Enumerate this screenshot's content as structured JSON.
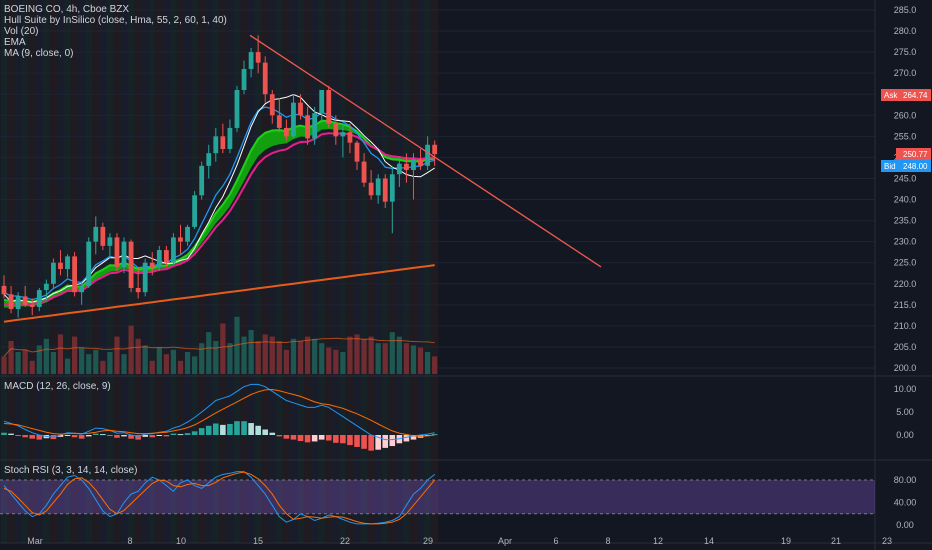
{
  "legend": {
    "symbol": "BOEING CO, 4h, Cboe BZX",
    "hull": "Hull Suite by InSilico (close, Hma, 55, 2, 60, 1, 40)",
    "vol": "Vol (20)",
    "ema": "EMA",
    "ma": "MA (9, close, 0)",
    "macd": "MACD (12, 26, close, 9)",
    "stoch": "Stoch RSI (3, 3, 14, 14, close)"
  },
  "price_labels": {
    "ask_label": "Ask",
    "ask_value": "264.74",
    "last_value": "250.77",
    "bid_label": "Bid",
    "bid_value": "248.00"
  },
  "colors": {
    "up": "#26a69a",
    "down": "#ef5350",
    "hull": "#13a80f",
    "ema_slow": "#e65c1b",
    "ema_fast": "#e91e8c",
    "ma": "#ffffff",
    "trendline": "#f05a50",
    "bb_blue": "#2196f3",
    "macd_line": "#2196f3",
    "signal_line": "#ff6d00",
    "stoch_k": "#2196f3",
    "stoch_d": "#ff6d00",
    "stoch_band": "#7e57c2"
  },
  "chart_data": [
    {
      "type": "candlestick",
      "name": "BOEING CO, 4h, Cboe BZX",
      "x_ticks": [
        "Mar",
        "8",
        "10",
        "15",
        "22",
        "29",
        "Apr",
        "6",
        "8",
        "12",
        "14",
        "19",
        "21",
        "23"
      ],
      "y_ticks": [
        285,
        280,
        275,
        270,
        265,
        260,
        255,
        250,
        245,
        240,
        235,
        230,
        225,
        220,
        215,
        210,
        205,
        200
      ],
      "ylim": [
        198,
        286
      ],
      "candles": [
        [
          219.5,
          222,
          216.5,
          217.5
        ],
        [
          217.5,
          219.5,
          213,
          214
        ],
        [
          214,
          218,
          212,
          217
        ],
        [
          217,
          219.5,
          214.5,
          215
        ],
        [
          215,
          216.5,
          212.5,
          214.5
        ],
        [
          214.5,
          219,
          213.5,
          218.5
        ],
        [
          218.5,
          221,
          216,
          220
        ],
        [
          220,
          226,
          219,
          225
        ],
        [
          225,
          228,
          222,
          223.5
        ],
        [
          223.5,
          227,
          221.5,
          226.5
        ],
        [
          226.5,
          227.5,
          217,
          218
        ],
        [
          218,
          220.5,
          215,
          219.5
        ],
        [
          219.5,
          231,
          219,
          230
        ],
        [
          230,
          236,
          227,
          233.5
        ],
        [
          233.5,
          234.5,
          228,
          229
        ],
        [
          229,
          232,
          226,
          231
        ],
        [
          231,
          232,
          223,
          224
        ],
        [
          224,
          231,
          222.5,
          230
        ],
        [
          230,
          230.5,
          218,
          219
        ],
        [
          219,
          224,
          216.5,
          218
        ],
        [
          218,
          226,
          217,
          225
        ],
        [
          225,
          227.5,
          222,
          224
        ],
        [
          224,
          229,
          223,
          228
        ],
        [
          228,
          229,
          224,
          225
        ],
        [
          225,
          232,
          224.5,
          231
        ],
        [
          231,
          234,
          227,
          230
        ],
        [
          230,
          234,
          229,
          233.5
        ],
        [
          233.5,
          242,
          233,
          241
        ],
        [
          241,
          249,
          240,
          248
        ],
        [
          248,
          253,
          245,
          251
        ],
        [
          251,
          257,
          249,
          255
        ],
        [
          255,
          258,
          251,
          252
        ],
        [
          252,
          259,
          251,
          257
        ],
        [
          257,
          267,
          256,
          266
        ],
        [
          266,
          273,
          265,
          271
        ],
        [
          271,
          276,
          269,
          275
        ],
        [
          275,
          279,
          270,
          272.5
        ],
        [
          272.5,
          274,
          263,
          265
        ],
        [
          265,
          266,
          258,
          260
        ],
        [
          260,
          264,
          256,
          257
        ],
        [
          257,
          259,
          254,
          255
        ],
        [
          255,
          265,
          254.5,
          263
        ],
        [
          263,
          265,
          259,
          260
        ],
        [
          260,
          262,
          253,
          254.5
        ],
        [
          254.5,
          262,
          253,
          260.5
        ],
        [
          260.5,
          266,
          258,
          266
        ],
        [
          266,
          267,
          257,
          258
        ],
        [
          258,
          260,
          253,
          255
        ],
        [
          255,
          258,
          250,
          256
        ],
        [
          256,
          258,
          251,
          253.5
        ],
        [
          253.5,
          254,
          247,
          249
        ],
        [
          249,
          251,
          243,
          244
        ],
        [
          244,
          247,
          240,
          241
        ],
        [
          241,
          246,
          239,
          245
        ],
        [
          245,
          246,
          238,
          239.5
        ],
        [
          239.5,
          248,
          232,
          246
        ],
        [
          246,
          250,
          243,
          248.5
        ],
        [
          248.5,
          251,
          244,
          247
        ],
        [
          247,
          251,
          240,
          249.5
        ],
        [
          249.5,
          252,
          247,
          248
        ],
        [
          248,
          255,
          247,
          253
        ],
        [
          253,
          254,
          248,
          250.77
        ]
      ],
      "volume": [
        80,
        150,
        100,
        110,
        60,
        130,
        160,
        100,
        180,
        70,
        170,
        120,
        90,
        110,
        60,
        100,
        170,
        90,
        220,
        160,
        130,
        60,
        120,
        90,
        110,
        60,
        100,
        80,
        140,
        190,
        150,
        230,
        140,
        260,
        170,
        200,
        150,
        180,
        170,
        150,
        110,
        160,
        150,
        170,
        160,
        140,
        120,
        110,
        100,
        170,
        180,
        160,
        170,
        140,
        140,
        190,
        170,
        140,
        130,
        120,
        100,
        80
      ],
      "ask": 264.74,
      "last": 250.77,
      "bid": 248.0
    },
    {
      "type": "histogram+line",
      "name": "MACD (12, 26, close, 9)",
      "y_ticks": [
        10.0,
        5.0,
        0.0
      ],
      "ylim": [
        -5,
        12
      ],
      "histogram": [
        0.5,
        0.3,
        -0.2,
        -0.5,
        -0.8,
        -1.0,
        -0.7,
        -0.9,
        -0.4,
        -0.2,
        -0.5,
        -0.8,
        -0.3,
        0.3,
        0.2,
        -0.2,
        -0.6,
        -0.3,
        -0.8,
        -1.0,
        -0.4,
        -0.5,
        -0.2,
        -0.3,
        0.3,
        0.2,
        0.4,
        0.8,
        1.5,
        2.0,
        2.5,
        2.2,
        2.4,
        3.0,
        3.0,
        2.6,
        2.0,
        1.2,
        0.5,
        -0.3,
        -0.8,
        -1.0,
        -1.3,
        -1.6,
        -1.4,
        -1.0,
        -1.2,
        -1.7,
        -1.8,
        -2.2,
        -2.6,
        -3.0,
        -3.4,
        -3.2,
        -2.8,
        -2.4,
        -1.8,
        -1.4,
        -1.0,
        -0.6,
        -0.2,
        0.2
      ],
      "macd": [
        3,
        2.5,
        2,
        1.2,
        0.5,
        0,
        -0.3,
        -0.5,
        0,
        0.5,
        0.4,
        0.2,
        0.8,
        1.5,
        1.4,
        1.0,
        0.4,
        0.5,
        0,
        -0.3,
        0.2,
        0.3,
        0.6,
        0.8,
        1.5,
        2,
        2.8,
        3.8,
        5,
        6.2,
        7.5,
        8,
        8.5,
        9.5,
        10.5,
        11,
        11,
        10.5,
        9.5,
        8.5,
        7.5,
        7,
        6.5,
        6,
        6,
        6.5,
        6,
        5,
        4,
        3,
        2,
        1,
        0,
        -0.5,
        -1,
        -1,
        -0.8,
        -0.5,
        -0.2,
        0,
        0.2,
        0.5
      ],
      "signal": [
        2.5,
        2.4,
        2.2,
        1.8,
        1.4,
        1.0,
        0.6,
        0.3,
        0.2,
        0.3,
        0.4,
        0.3,
        0.4,
        0.6,
        0.9,
        1.0,
        0.8,
        0.7,
        0.5,
        0.3,
        0.3,
        0.4,
        0.5,
        0.6,
        0.9,
        1.2,
        1.6,
        2.2,
        3.0,
        3.9,
        4.8,
        5.6,
        6.4,
        7.2,
        8.0,
        8.8,
        9.4,
        9.8,
        9.9,
        9.6,
        9.2,
        8.8,
        8.4,
        7.8,
        7.2,
        6.8,
        6.6,
        6.2,
        5.8,
        5.2,
        4.6,
        3.9,
        3.2,
        2.4,
        1.6,
        0.9,
        0.4,
        0.1,
        -0.2,
        -0.3,
        -0.2,
        0.0
      ]
    },
    {
      "type": "line",
      "name": "Stoch RSI (3, 3, 14, 14, close)",
      "y_ticks": [
        80.0,
        40.0,
        0.0
      ],
      "ylim": [
        -5,
        100
      ],
      "band": [
        20,
        80
      ],
      "k": [
        70,
        55,
        40,
        25,
        15,
        20,
        35,
        55,
        70,
        85,
        88,
        80,
        65,
        45,
        25,
        15,
        20,
        40,
        55,
        60,
        75,
        85,
        80,
        70,
        60,
        75,
        80,
        70,
        65,
        75,
        85,
        90,
        92,
        95,
        95,
        85,
        70,
        55,
        35,
        15,
        5,
        10,
        20,
        15,
        8,
        12,
        18,
        15,
        10,
        5,
        2,
        2,
        2,
        3,
        5,
        8,
        15,
        35,
        55,
        65,
        80,
        90
      ],
      "d": [
        65,
        60,
        48,
        35,
        22,
        18,
        25,
        40,
        55,
        72,
        82,
        84,
        76,
        62,
        45,
        28,
        20,
        26,
        38,
        50,
        62,
        74,
        80,
        78,
        70,
        68,
        72,
        74,
        70,
        70,
        76,
        84,
        88,
        92,
        94,
        90,
        82,
        70,
        55,
        35,
        20,
        10,
        12,
        15,
        14,
        12,
        14,
        15,
        14,
        10,
        6,
        3,
        2,
        2,
        3,
        5,
        10,
        20,
        35,
        50,
        65,
        80
      ]
    }
  ]
}
